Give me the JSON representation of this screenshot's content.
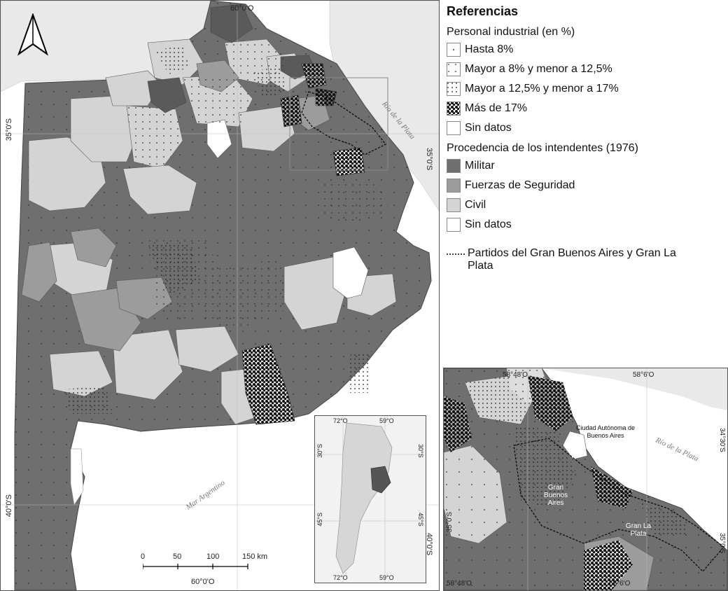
{
  "main_map": {
    "coords": {
      "top_lon": "60°0'O",
      "bottom_lon": "60°0'O",
      "left_lat_top": "35°0'S",
      "left_lat_bottom": "40°0'S",
      "right_lat_top": "35°0'S",
      "right_lat_bottom": "40°0'S"
    },
    "water_labels": {
      "river": "Río de la Plata",
      "sea": "Mar Argentino"
    },
    "scale_bar": {
      "ticks": [
        "0",
        "50",
        "100",
        "150 km"
      ]
    }
  },
  "inset_argentina": {
    "coords": {
      "top_left": "72°O",
      "top_right": "59°O",
      "bottom_left": "72°O",
      "bottom_right": "59°O",
      "left_top": "30°S",
      "left_bottom": "45°S",
      "right_top": "30°S",
      "right_bottom": "45°S"
    }
  },
  "inset_gba": {
    "coords": {
      "top_left": "58°48'O",
      "top_right": "58°6'O",
      "bottom_left": "58°48'O",
      "bottom_right": "58°6'O",
      "left_lat": "35°0'S",
      "right_top": "34°30'S",
      "right_bottom": "35°0'S"
    },
    "labels": {
      "caba": "Ciudad Autónoma de Buenos Aires",
      "gba": "Gran Buenos Aires",
      "glp": "Gran La Plata",
      "river": "Río de la Plata"
    }
  },
  "legend": {
    "title": "Referencias",
    "industrial": {
      "title": "Personal industrial (en %)",
      "items": [
        {
          "label": "Hasta 8%",
          "pattern": "sparse-dots"
        },
        {
          "label": "Mayor a 8% y menor a 12,5%",
          "pattern": "light-dots"
        },
        {
          "label": "Mayor a 12,5% y menor a 17%",
          "pattern": "medium-dots"
        },
        {
          "label": "Más de 17%",
          "pattern": "dense-dots"
        },
        {
          "label": "Sin datos",
          "pattern": "none"
        }
      ]
    },
    "intendentes": {
      "title": "Procedencia de los intendentes (1976)",
      "items": [
        {
          "label": "Militar",
          "color": "#6f6f6f"
        },
        {
          "label": "Fuerzas de Seguridad",
          "color": "#9c9c9c"
        },
        {
          "label": "Civil",
          "color": "#d4d4d4"
        },
        {
          "label": "Sin datos",
          "color": "#ffffff"
        }
      ]
    },
    "gba_line": {
      "label": "Partidos del Gran Buenos Aires y Gran La Plata"
    }
  }
}
